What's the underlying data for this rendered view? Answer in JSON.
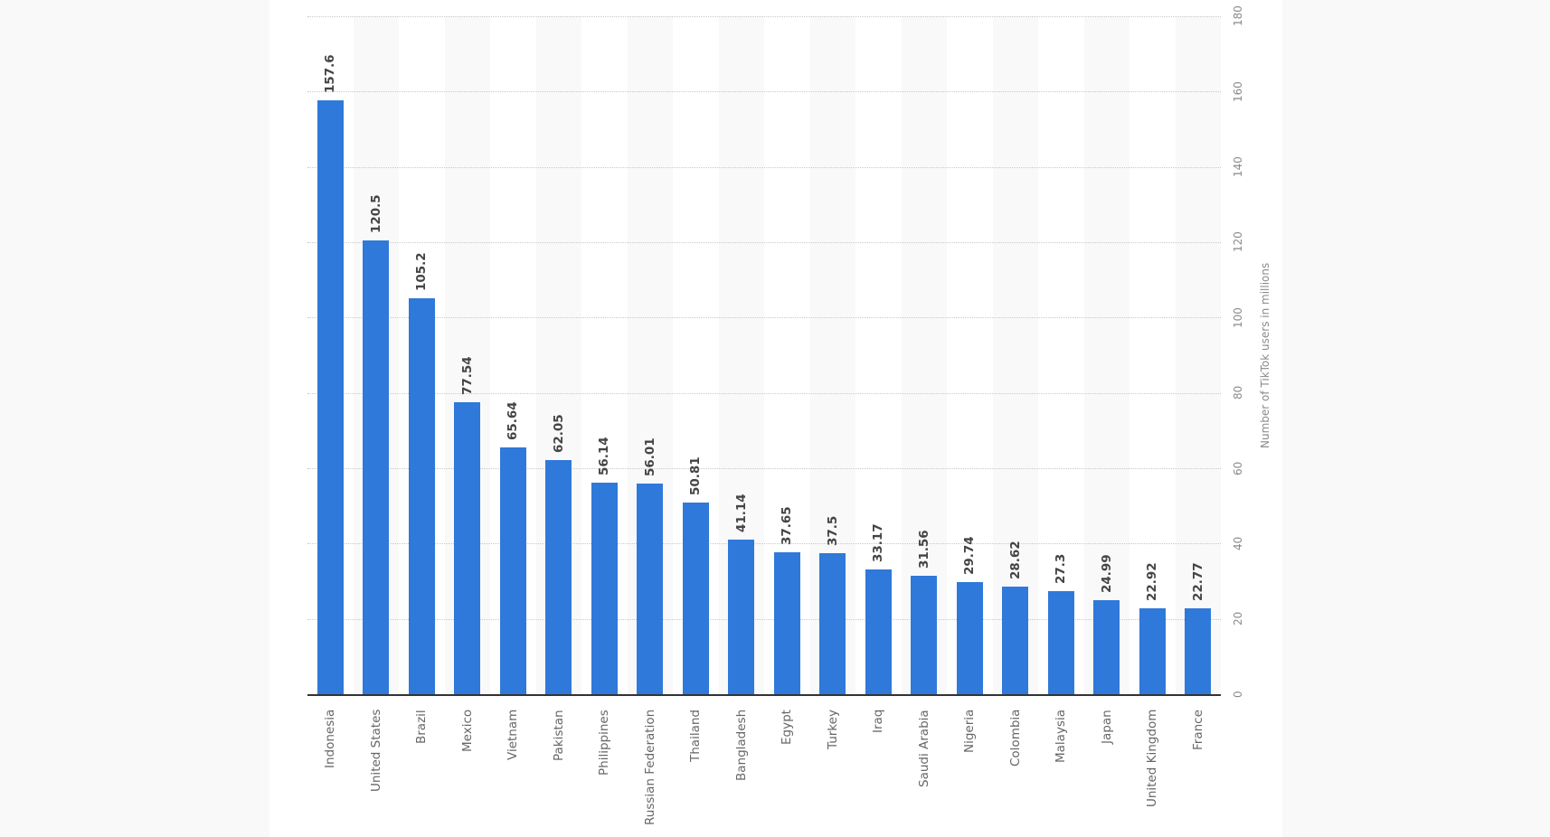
{
  "page": {
    "background": "#f9f9f9",
    "panel_background": "#ffffff"
  },
  "chart_data": {
    "type": "bar",
    "title": "",
    "xlabel": "",
    "ylabel": "Number of TikTok users in millions",
    "ylim": [
      0,
      180
    ],
    "yticks": [
      0,
      20,
      40,
      60,
      80,
      100,
      120,
      140,
      160,
      180
    ],
    "y_axis_position": "right",
    "grid": true,
    "legend": null,
    "bar_color": "#2f79da",
    "categories": [
      "Indonesia",
      "United States",
      "Brazil",
      "Mexico",
      "Vietnam",
      "Pakistan",
      "Philippines",
      "Russian Federation",
      "Thailand",
      "Bangladesh",
      "Egypt",
      "Turkey",
      "Iraq",
      "Saudi Arabia",
      "Nigeria",
      "Colombia",
      "Malaysia",
      "Japan",
      "United Kingdom",
      "France"
    ],
    "values": [
      157.6,
      120.5,
      105.2,
      77.54,
      65.64,
      62.05,
      56.14,
      56.01,
      50.81,
      41.14,
      37.65,
      37.5,
      33.17,
      31.56,
      29.74,
      28.62,
      27.3,
      24.99,
      22.92,
      22.77
    ],
    "value_labels": [
      "157.6",
      "120.5",
      "105.2",
      "77.54",
      "65.64",
      "62.05",
      "56.14",
      "56.01",
      "50.81",
      "41.14",
      "37.65",
      "37.5",
      "33.17",
      "31.56",
      "29.74",
      "28.62",
      "27.3",
      "24.99",
      "22.92",
      "22.77"
    ]
  }
}
